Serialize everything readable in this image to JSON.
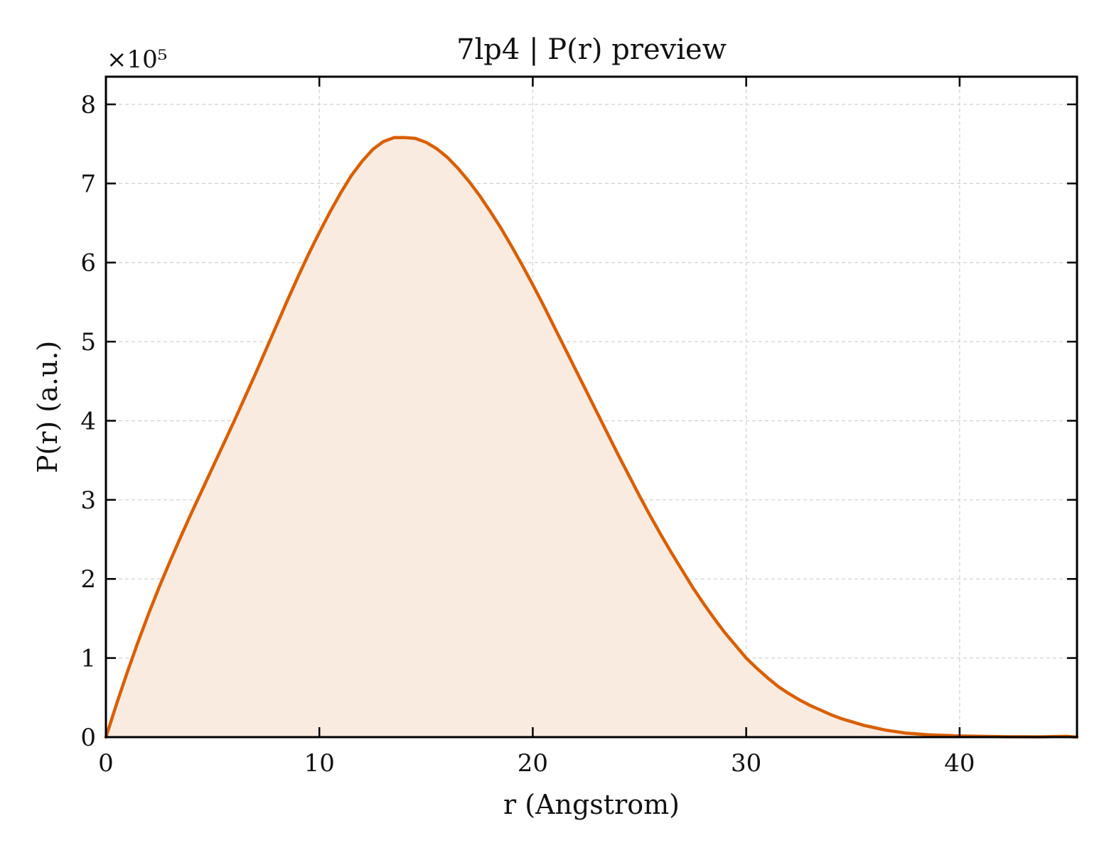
{
  "chart_data": {
    "type": "area",
    "title": "7lp4 | P(r) preview",
    "xlabel": "r (Angstrom)",
    "ylabel": "P(r) (a.u.)",
    "y_multiplier_label": "×10⁵",
    "xlim": [
      0,
      45.5
    ],
    "ylim": [
      0,
      8.35
    ],
    "y_scale_factor": 100000,
    "x_ticks": [
      0,
      10,
      20,
      30,
      40
    ],
    "y_ticks": [
      0,
      1,
      2,
      3,
      4,
      5,
      6,
      7,
      8
    ],
    "grid": true,
    "legend": "none",
    "line_color": "#D95F02",
    "fill_color": "#FAEBE0",
    "series": [
      {
        "x": [
          0,
          0.5,
          1,
          1.5,
          2,
          2.5,
          3,
          3.5,
          4,
          4.5,
          5,
          5.5,
          6,
          6.5,
          7,
          7.5,
          8,
          8.5,
          9,
          9.5,
          10,
          10.5,
          11,
          11.5,
          12,
          12.5,
          13,
          13.5,
          14,
          14.5,
          15,
          15.5,
          16,
          16.5,
          17,
          17.5,
          18,
          18.5,
          19,
          19.5,
          20,
          20.5,
          21,
          21.5,
          22,
          22.5,
          23,
          23.5,
          24,
          24.5,
          25,
          25.5,
          26,
          26.5,
          27,
          27.5,
          28,
          28.5,
          29,
          29.5,
          30,
          30.5,
          31,
          31.5,
          32,
          32.5,
          33,
          33.5,
          34,
          34.5,
          35,
          35.5,
          36,
          36.5,
          37,
          37.5,
          38,
          38.5,
          39,
          39.5,
          40,
          40.5,
          41,
          41.5,
          42,
          42.5,
          43,
          43.5,
          44,
          44.5,
          45,
          45.5
        ],
        "y": [
          0,
          0.42,
          0.82,
          1.2,
          1.56,
          1.9,
          2.22,
          2.53,
          2.83,
          3.12,
          3.41,
          3.7,
          3.99,
          4.29,
          4.59,
          4.9,
          5.21,
          5.52,
          5.82,
          6.11,
          6.38,
          6.64,
          6.88,
          7.1,
          7.28,
          7.43,
          7.53,
          7.58,
          7.58,
          7.57,
          7.52,
          7.44,
          7.33,
          7.19,
          7.03,
          6.85,
          6.65,
          6.44,
          6.21,
          5.97,
          5.72,
          5.46,
          5.19,
          4.92,
          4.65,
          4.38,
          4.11,
          3.84,
          3.57,
          3.31,
          3.05,
          2.8,
          2.56,
          2.33,
          2.11,
          1.89,
          1.69,
          1.5,
          1.32,
          1.16,
          1.0,
          0.87,
          0.75,
          0.64,
          0.55,
          0.47,
          0.4,
          0.34,
          0.28,
          0.23,
          0.19,
          0.15,
          0.12,
          0.09,
          0.07,
          0.05,
          0.04,
          0.03,
          0.025,
          0.02,
          0.015,
          0.012,
          0.01,
          0.008,
          0.006,
          0.005,
          0.004,
          0.003,
          0.005,
          0.008,
          0.01,
          0.0
        ]
      }
    ]
  }
}
